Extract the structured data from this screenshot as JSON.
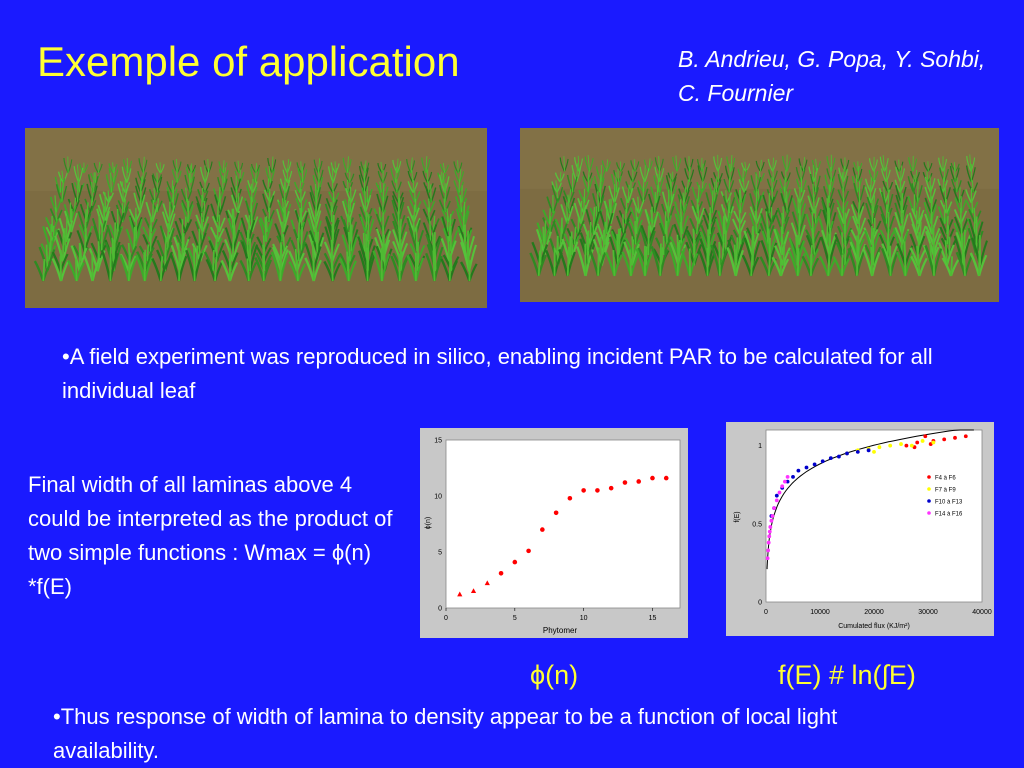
{
  "title": "Exemple of application",
  "authors": "B. Andrieu, G. Popa, Y. Sohbi, C. Fournier",
  "bullet1": "•A field  experiment was reproduced in silico, enabling incident PAR to be calculated for all individual leaf",
  "left_text": "Final width of all laminas above 4 could be interpreted as the product of two simple functions : Wmax = ϕ(n) *f(E)",
  "bullet2": "•Thus response of width of lamina to density appear to be a function of local light availability.",
  "caption_phi": "ϕ(n)",
  "caption_f": "f(E) # ln(∫E)",
  "colors": {
    "background": "#1a1aff",
    "title": "#ffff33",
    "text": "#ffffff",
    "soil": "#7a6a3e",
    "plant": "#3faa2a"
  },
  "chart_data": [
    {
      "type": "scatter",
      "title": "",
      "xlabel": "Phytomer",
      "ylabel": "ϕ(n)",
      "xlim": [
        0,
        17
      ],
      "ylim": [
        0,
        15
      ],
      "xticks": [
        "0",
        "5",
        "10",
        "15"
      ],
      "yticks": [
        "0",
        "5",
        "10",
        "15"
      ],
      "series": [
        {
          "color": "#ff0000",
          "marker": "triangle",
          "x": [
            1,
            2,
            3
          ],
          "y": [
            1.2,
            1.5,
            2.2
          ]
        },
        {
          "color": "#ff0000",
          "marker": "circle",
          "x": [
            4,
            5,
            6,
            7,
            8,
            9,
            10,
            11,
            12,
            13,
            14,
            15,
            16
          ],
          "y": [
            3.1,
            4.1,
            5.1,
            7.0,
            8.5,
            9.8,
            10.5,
            10.5,
            10.7,
            11.2,
            11.3,
            11.6,
            11.6
          ]
        }
      ]
    },
    {
      "type": "scatter",
      "title": "",
      "xlabel": "Cumulated flux (KJ/m²)",
      "ylabel": "f(E)",
      "xlim": [
        0,
        40000
      ],
      "ylim": [
        0,
        1.1
      ],
      "xticks": [
        "0",
        "10000",
        "20000",
        "30000",
        "40000"
      ],
      "yticks": [
        "0",
        "0.5",
        "1"
      ],
      "legend_position": "right",
      "series": [
        {
          "name": "F4 à F6",
          "color": "#ff0000",
          "x": [
            26000,
            28000,
            29500,
            31000,
            33000,
            35000,
            37000,
            30500,
            27500
          ],
          "y": [
            1.0,
            1.02,
            1.06,
            1.03,
            1.04,
            1.05,
            1.06,
            1.01,
            0.99
          ]
        },
        {
          "name": "F7 à F9",
          "color": "#ffff00",
          "x": [
            15000,
            17000,
            19000,
            21000,
            23000,
            25000,
            27000,
            29000,
            31000,
            20000
          ],
          "y": [
            0.95,
            0.97,
            0.98,
            0.99,
            1.0,
            1.01,
            1.0,
            1.03,
            1.02,
            0.96
          ]
        },
        {
          "name": "F10 à F13",
          "color": "#0000cc",
          "x": [
            1000,
            1500,
            2000,
            3000,
            4000,
            5000,
            6000,
            7500,
            9000,
            10500,
            12000,
            13500,
            15000,
            17000,
            19000
          ],
          "y": [
            0.55,
            0.6,
            0.68,
            0.73,
            0.77,
            0.8,
            0.84,
            0.86,
            0.88,
            0.9,
            0.92,
            0.93,
            0.95,
            0.96,
            0.97
          ]
        },
        {
          "name": "F14 à F16",
          "color": "#ff33ff",
          "x": [
            300,
            400,
            500,
            600,
            700,
            800,
            1000,
            1200,
            1500,
            2000,
            2500,
            3000,
            3500,
            4000
          ],
          "y": [
            0.28,
            0.33,
            0.38,
            0.42,
            0.45,
            0.48,
            0.52,
            0.55,
            0.6,
            0.65,
            0.7,
            0.74,
            0.77,
            0.8
          ]
        }
      ],
      "fit_curve": "log"
    }
  ]
}
